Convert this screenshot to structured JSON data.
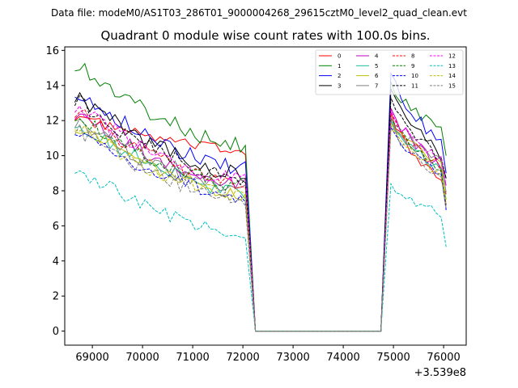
{
  "chart_data": {
    "type": "line",
    "suptitle": "Data file: modeM0/AS1T03_286T01_9000004268_29615cztM0_level2_quad_clean.evt",
    "title": "Quadrant 0 module wise count rates with 100.0s bins.",
    "xlabel": "",
    "ylabel": "",
    "x_offset_label": "+3.539e8",
    "xlim": [
      68450,
      76450
    ],
    "ylim": [
      -0.8,
      16.2
    ],
    "xticks": [
      69000,
      70000,
      71000,
      72000,
      73000,
      74000,
      75000,
      76000
    ],
    "xtick_labels": [
      "69000",
      "70000",
      "71000",
      "72000",
      "73000",
      "74000",
      "75000",
      "76000"
    ],
    "yticks": [
      0,
      2,
      4,
      6,
      8,
      10,
      12,
      14,
      16
    ],
    "ytick_labels": [
      "0",
      "2",
      "4",
      "6",
      "8",
      "10",
      "12",
      "14",
      "16"
    ],
    "grid": false,
    "legend_position": "top-right",
    "series": [
      {
        "name": "0",
        "color": "#ff0000",
        "style": "solid",
        "base": 12.3,
        "end_base": 10.3,
        "seg2": 12.5,
        "seg2_end": 8.6,
        "last": 7.8
      },
      {
        "name": "1",
        "color": "#008000",
        "style": "solid",
        "base": 15.3,
        "end_base": 10.6,
        "seg2": 14.2,
        "seg2_end": 11.5,
        "last": 10.0
      },
      {
        "name": "2",
        "color": "#0000ff",
        "style": "solid",
        "base": 13.8,
        "end_base": 9.3,
        "seg2": 14.7,
        "seg2_end": 10.6,
        "last": 9.0
      },
      {
        "name": "3",
        "color": "#000000",
        "style": "solid",
        "base": 13.5,
        "end_base": 8.9,
        "seg2": 13.8,
        "seg2_end": 10.0,
        "last": 8.7
      },
      {
        "name": "4",
        "color": "#bf00bf",
        "style": "solid",
        "base": 12.5,
        "end_base": 8.3,
        "seg2": 12.7,
        "seg2_end": 9.4,
        "last": 8.3
      },
      {
        "name": "5",
        "color": "#1abc9c",
        "style": "solid",
        "base": 12.0,
        "end_base": 7.9,
        "seg2": 12.0,
        "seg2_end": 9.2,
        "last": 7.5
      },
      {
        "name": "6",
        "color": "#bfbf00",
        "style": "solid",
        "base": 11.8,
        "end_base": 7.8,
        "seg2": 11.9,
        "seg2_end": 9.5,
        "last": 7.2
      },
      {
        "name": "7",
        "color": "#808080",
        "style": "solid",
        "base": 12.0,
        "end_base": 8.0,
        "seg2": 12.2,
        "seg2_end": 9.6,
        "last": 7.9
      },
      {
        "name": "8",
        "color": "#ff0000",
        "style": "dashed",
        "base": 12.6,
        "end_base": 8.4,
        "seg2": 12.3,
        "seg2_end": 9.3,
        "last": 7.2
      },
      {
        "name": "9",
        "color": "#008000",
        "style": "dashed",
        "base": 12.4,
        "end_base": 8.3,
        "seg2": 12.1,
        "seg2_end": 9.3,
        "last": 7.0
      },
      {
        "name": "10",
        "color": "#0000ff",
        "style": "dashed",
        "base": 11.6,
        "end_base": 7.7,
        "seg2": 11.6,
        "seg2_end": 9.0,
        "last": 6.9
      },
      {
        "name": "11",
        "color": "#000000",
        "style": "dashed",
        "base": 13.3,
        "end_base": 8.7,
        "seg2": 13.3,
        "seg2_end": 9.8,
        "last": 8.7
      },
      {
        "name": "12",
        "color": "#ff00ff",
        "style": "dashed",
        "base": 12.9,
        "end_base": 8.6,
        "seg2": 12.6,
        "seg2_end": 9.7,
        "last": 8.3
      },
      {
        "name": "13",
        "color": "#00bfbf",
        "style": "dashed",
        "base": 9.4,
        "end_base": 5.5,
        "seg2": 8.4,
        "seg2_end": 6.7,
        "last": 4.8
      },
      {
        "name": "14",
        "color": "#bfbf00",
        "style": "dashed",
        "base": 11.9,
        "end_base": 7.6,
        "seg2": 11.5,
        "seg2_end": 9.0,
        "last": 7.4
      },
      {
        "name": "15",
        "color": "#808080",
        "style": "dashed",
        "base": 11.6,
        "end_base": 7.5,
        "seg2": 11.7,
        "seg2_end": 8.8,
        "last": 7.0
      }
    ],
    "segments": {
      "seg1_x": [
        68650,
        72050
      ],
      "gap_x": [
        72250,
        74750
      ],
      "seg2_x": [
        74950,
        75950
      ],
      "last_x": 76050,
      "step": 100
    }
  }
}
